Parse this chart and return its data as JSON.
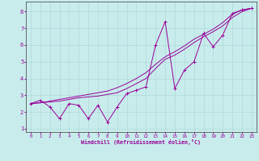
{
  "xlabel": "Windchill (Refroidissement éolien,°C)",
  "ylabel": "",
  "background_color": "#c8ecec",
  "grid_color": "#b0d8d8",
  "line_color": "#990099",
  "spine_color": "#555555",
  "xlim": [
    -0.5,
    23.5
  ],
  "ylim": [
    0.8,
    8.6
  ],
  "xticks": [
    0,
    1,
    2,
    3,
    4,
    5,
    6,
    7,
    8,
    9,
    10,
    11,
    12,
    13,
    14,
    15,
    16,
    17,
    18,
    19,
    20,
    21,
    22,
    23
  ],
  "yticks": [
    1,
    2,
    3,
    4,
    5,
    6,
    7,
    8
  ],
  "series": [
    [
      2.5,
      2.7,
      2.3,
      1.6,
      2.5,
      2.4,
      1.6,
      2.4,
      1.4,
      2.3,
      3.1,
      3.3,
      3.5,
      6.0,
      7.4,
      3.4,
      4.5,
      5.0,
      6.7,
      5.9,
      6.6,
      7.9,
      8.1,
      8.2
    ],
    [
      2.5,
      2.55,
      2.6,
      2.65,
      2.75,
      2.85,
      2.9,
      2.95,
      3.05,
      3.15,
      3.4,
      3.7,
      4.0,
      4.6,
      5.15,
      5.4,
      5.75,
      6.15,
      6.5,
      6.8,
      7.15,
      7.65,
      8.0,
      8.2
    ],
    [
      2.5,
      2.55,
      2.65,
      2.75,
      2.85,
      2.95,
      3.05,
      3.15,
      3.25,
      3.45,
      3.7,
      4.0,
      4.35,
      4.85,
      5.3,
      5.6,
      5.95,
      6.35,
      6.65,
      6.95,
      7.35,
      7.85,
      8.1,
      8.2
    ]
  ]
}
